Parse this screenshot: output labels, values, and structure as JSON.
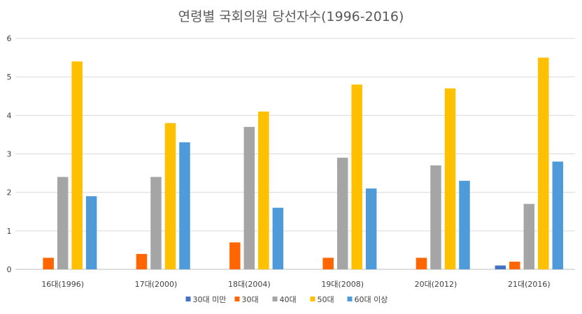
{
  "chart_data": {
    "type": "bar",
    "title": "연령별 국회의원 당선자수(1996-2016)",
    "xlabel": "",
    "ylabel": "",
    "categories": [
      "16대(1996)",
      "17대(2000)",
      "18대(2004)",
      "19대(2008)",
      "20대(2012)",
      "21대(2016)"
    ],
    "series": [
      {
        "name": "30대 미만",
        "color": "#4472c4",
        "values": [
          0,
          0,
          0,
          0,
          0,
          0.1
        ]
      },
      {
        "name": "30대",
        "color": "#ff6600",
        "values": [
          0.3,
          0.4,
          0.7,
          0.3,
          0.3,
          0.2
        ]
      },
      {
        "name": "40대",
        "color": "#a5a5a5",
        "values": [
          2.4,
          2.4,
          3.7,
          2.9,
          2.7,
          1.7
        ]
      },
      {
        "name": "50대",
        "color": "#ffc000",
        "values": [
          5.4,
          3.8,
          4.1,
          4.8,
          4.7,
          5.5
        ]
      },
      {
        "name": "60대 이상",
        "color": "#4f9bd9",
        "values": [
          1.9,
          3.3,
          1.6,
          2.1,
          2.3,
          2.8
        ]
      }
    ],
    "ylim": [
      0,
      6
    ],
    "yticks": [
      "0",
      "1",
      "2",
      "3",
      "4",
      "5",
      "6"
    ],
    "grid": true,
    "legend_position": "bottom"
  }
}
